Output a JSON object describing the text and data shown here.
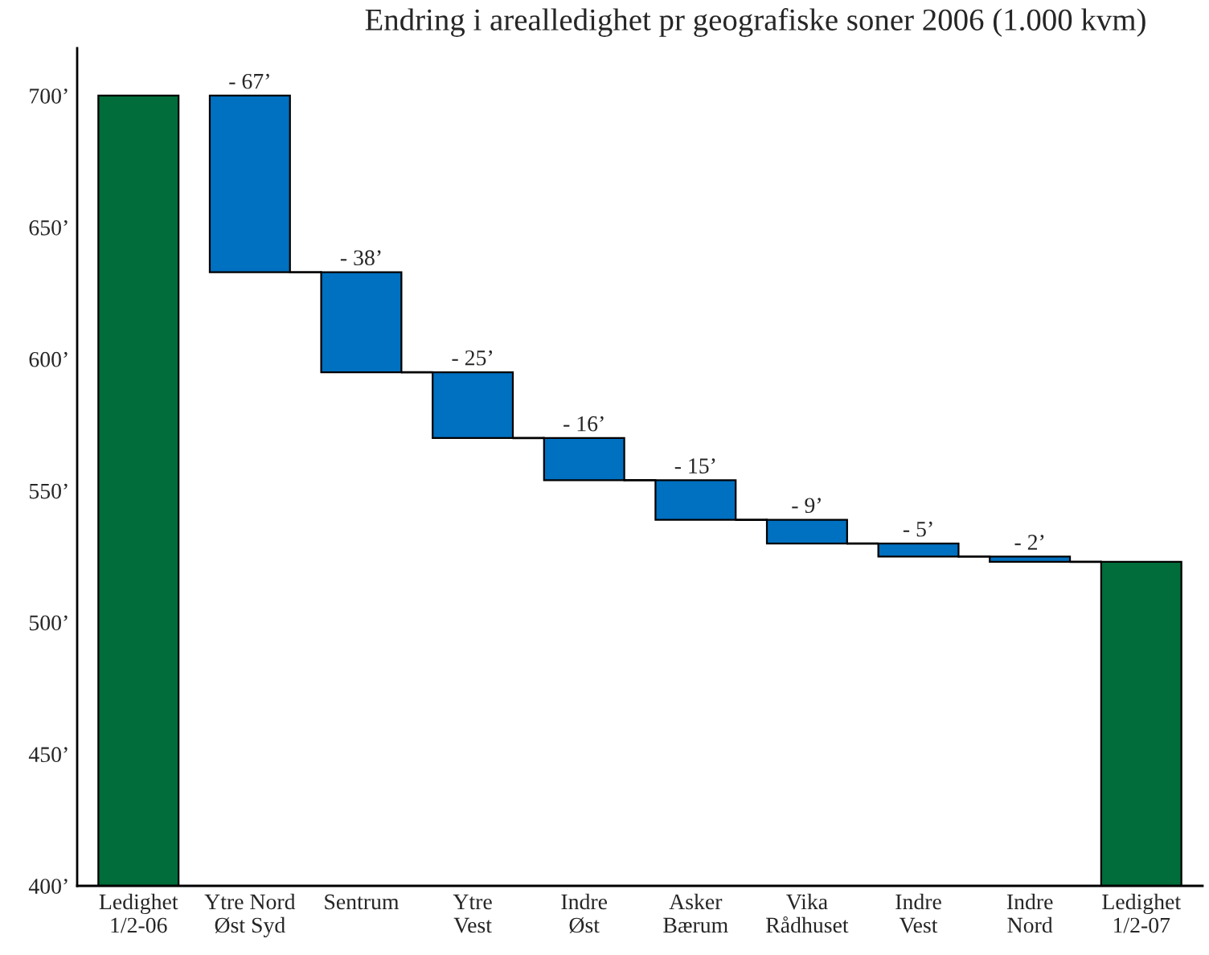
{
  "chart_data": {
    "type": "bar",
    "title": "Endring i arealledighet pr geografiske soner 2006 (1.000 kvm)",
    "categories": [
      "Ledighet\n1/2-06",
      "Ytre Nord\nØst Syd",
      "Sentrum",
      "Ytre\nVest",
      "Indre\nØst",
      "Asker\nBærum",
      "Vika\nRådhuset",
      "Indre\nVest",
      "Indre\nNord",
      "Ledighet\n1/2-07"
    ],
    "base": [
      400,
      700,
      633,
      595,
      570,
      554,
      539,
      530,
      525,
      400
    ],
    "values": [
      300,
      -67,
      -38,
      -25,
      -16,
      -15,
      -9,
      -5,
      -2,
      123
    ],
    "colors": [
      "#006d3a",
      "#0070c0",
      "#0070c0",
      "#0070c0",
      "#0070c0",
      "#0070c0",
      "#0070c0",
      "#0070c0",
      "#0070c0",
      "#006d3a"
    ],
    "value_labels": [
      null,
      "- 67’",
      "- 38’",
      "- 25’",
      "- 16’",
      "- 15’",
      "- 9’",
      "- 5’",
      "- 2’",
      null
    ],
    "ylim": [
      400,
      718
    ],
    "yticks": [
      {
        "value": 400,
        "label": "400’"
      },
      {
        "value": 450,
        "label": "450’"
      },
      {
        "value": 500,
        "label": "500’"
      },
      {
        "value": 550,
        "label": "550’"
      },
      {
        "value": 600,
        "label": "600’"
      },
      {
        "value": 650,
        "label": "650’"
      },
      {
        "value": 700,
        "label": "700’"
      }
    ],
    "grid": false,
    "legend": false
  }
}
